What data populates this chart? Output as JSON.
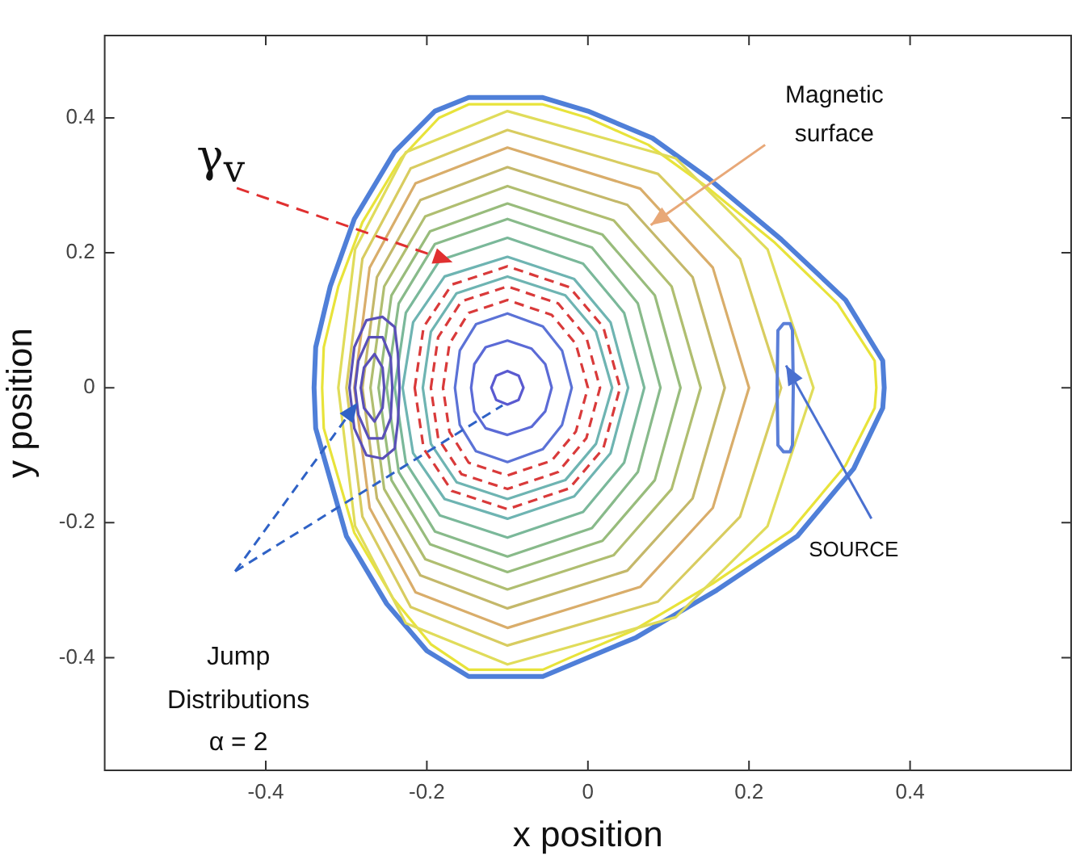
{
  "chart_data": {
    "type": "line",
    "xlabel": "x position",
    "ylabel": "y position",
    "xlim": [
      -0.6,
      0.6
    ],
    "ylim": [
      -0.567,
      0.522
    ],
    "xticks": [
      -0.4,
      -0.2,
      0,
      0.2,
      0.4
    ],
    "yticks": [
      -0.4,
      -0.2,
      0,
      0.2,
      0.4
    ],
    "legend": false,
    "annotations": [
      "γ$_{v}$",
      "Magnetic\nsurface",
      "SOURCE",
      "Jump\nDistributions\nα = 2"
    ]
  }
}
